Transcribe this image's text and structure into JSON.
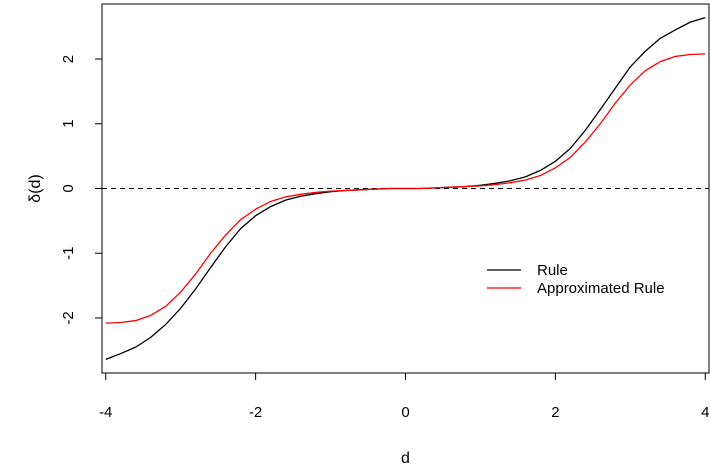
{
  "chart_data": {
    "type": "line",
    "title": "",
    "xlabel": "d",
    "ylabel": "δ(d)",
    "xlim": [
      -4.05,
      4.05
    ],
    "ylim": [
      -2.85,
      2.85
    ],
    "x_ticks": [
      -4,
      -2,
      0,
      2,
      4
    ],
    "x_tick_labels": [
      "-4",
      "-2",
      "0",
      "2",
      "4"
    ],
    "y_ticks": [
      -2,
      -1,
      0,
      1,
      2
    ],
    "y_tick_labels": [
      "-2",
      "-1",
      "0",
      "1",
      "2"
    ],
    "grid": false,
    "reference_line": {
      "y": 0,
      "style": "dashed",
      "color": "#000000"
    },
    "legend": {
      "position": "bottom-right"
    },
    "series": [
      {
        "name": "Rule",
        "color": "#000000",
        "x": [
          -4.0,
          -3.8,
          -3.6,
          -3.4,
          -3.2,
          -3.0,
          -2.8,
          -2.6,
          -2.4,
          -2.2,
          -2.0,
          -1.8,
          -1.6,
          -1.4,
          -1.2,
          -1.0,
          -0.8,
          -0.6,
          -0.4,
          -0.2,
          0.0,
          0.2,
          0.4,
          0.6,
          0.8,
          1.0,
          1.2,
          1.4,
          1.6,
          1.8,
          2.0,
          2.2,
          2.4,
          2.6,
          2.8,
          3.0,
          3.2,
          3.4,
          3.6,
          3.8,
          4.0
        ],
        "y": [
          -2.64,
          -2.55,
          -2.45,
          -2.3,
          -2.1,
          -1.85,
          -1.55,
          -1.22,
          -0.9,
          -0.62,
          -0.42,
          -0.28,
          -0.18,
          -0.12,
          -0.08,
          -0.05,
          -0.03,
          -0.02,
          -0.01,
          0.0,
          0.0,
          0.0,
          0.01,
          0.02,
          0.03,
          0.05,
          0.08,
          0.12,
          0.18,
          0.28,
          0.42,
          0.62,
          0.9,
          1.22,
          1.55,
          1.88,
          2.12,
          2.32,
          2.45,
          2.57,
          2.64
        ]
      },
      {
        "name": "Approximated Rule",
        "color": "#ff0000",
        "x": [
          -4.0,
          -3.8,
          -3.6,
          -3.4,
          -3.2,
          -3.0,
          -2.8,
          -2.6,
          -2.4,
          -2.2,
          -2.0,
          -1.8,
          -1.6,
          -1.4,
          -1.2,
          -1.0,
          -0.8,
          -0.6,
          -0.4,
          -0.2,
          0.0,
          0.2,
          0.4,
          0.6,
          0.8,
          1.0,
          1.2,
          1.4,
          1.6,
          1.8,
          2.0,
          2.2,
          2.4,
          2.6,
          2.8,
          3.0,
          3.2,
          3.4,
          3.6,
          3.8,
          4.0
        ],
        "y": [
          -2.08,
          -2.07,
          -2.04,
          -1.96,
          -1.82,
          -1.6,
          -1.32,
          -1.0,
          -0.72,
          -0.48,
          -0.32,
          -0.2,
          -0.13,
          -0.09,
          -0.06,
          -0.04,
          -0.03,
          -0.02,
          -0.01,
          0.0,
          0.0,
          0.0,
          0.01,
          0.02,
          0.03,
          0.04,
          0.06,
          0.09,
          0.13,
          0.2,
          0.32,
          0.48,
          0.72,
          1.0,
          1.32,
          1.6,
          1.82,
          1.96,
          2.04,
          2.07,
          2.08
        ]
      }
    ]
  }
}
